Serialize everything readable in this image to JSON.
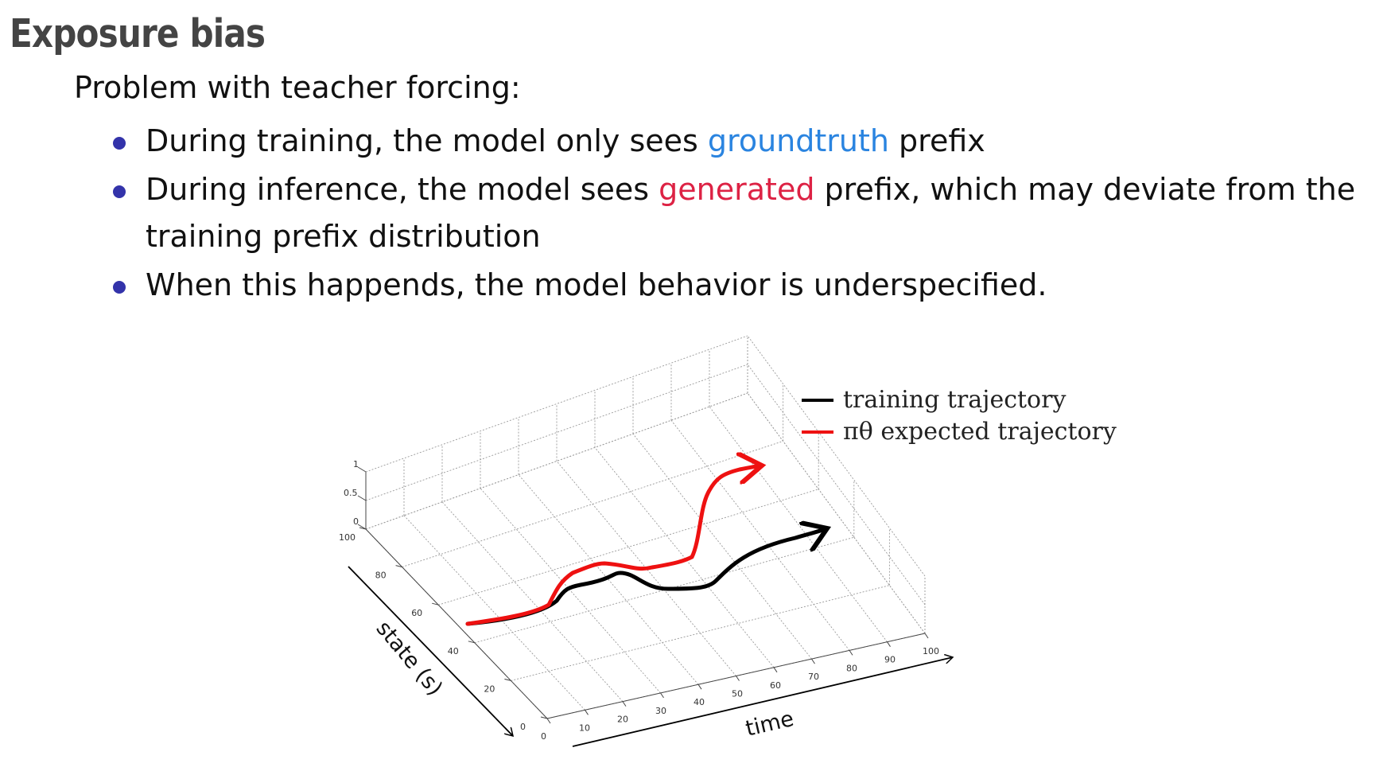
{
  "slide": {
    "title": "Exposure bias",
    "intro": "Problem with teacher forcing:",
    "bullets": [
      {
        "parts": [
          {
            "text": "During training, the model only sees ",
            "color": ""
          },
          {
            "text": "groundtruth",
            "color": "#2a84e0"
          },
          {
            "text": " prefix",
            "color": ""
          }
        ]
      },
      {
        "parts": [
          {
            "text": "During inference, the model sees ",
            "color": ""
          },
          {
            "text": "generated",
            "color": "#dd2244"
          },
          {
            "text": " prefix, which may deviate from the training prefix distribution",
            "color": ""
          }
        ]
      },
      {
        "parts": [
          {
            "text": "When this happends, the model behavior is underspecified.",
            "color": ""
          }
        ]
      }
    ]
  },
  "figure": {
    "legend": [
      {
        "label": "training trajectory",
        "color": "#000000"
      },
      {
        "label": "πθ expected trajectory",
        "color": "#ee1111"
      }
    ],
    "axes": {
      "time": {
        "label": "time",
        "ticks": [
          "0",
          "10",
          "20",
          "30",
          "40",
          "50",
          "60",
          "70",
          "80",
          "90",
          "100"
        ]
      },
      "state": {
        "label": "state (s)",
        "ticks": [
          "0",
          "20",
          "40",
          "60",
          "80",
          "100"
        ]
      },
      "z": {
        "ticks": [
          "0",
          "0.5",
          "1"
        ]
      }
    }
  }
}
